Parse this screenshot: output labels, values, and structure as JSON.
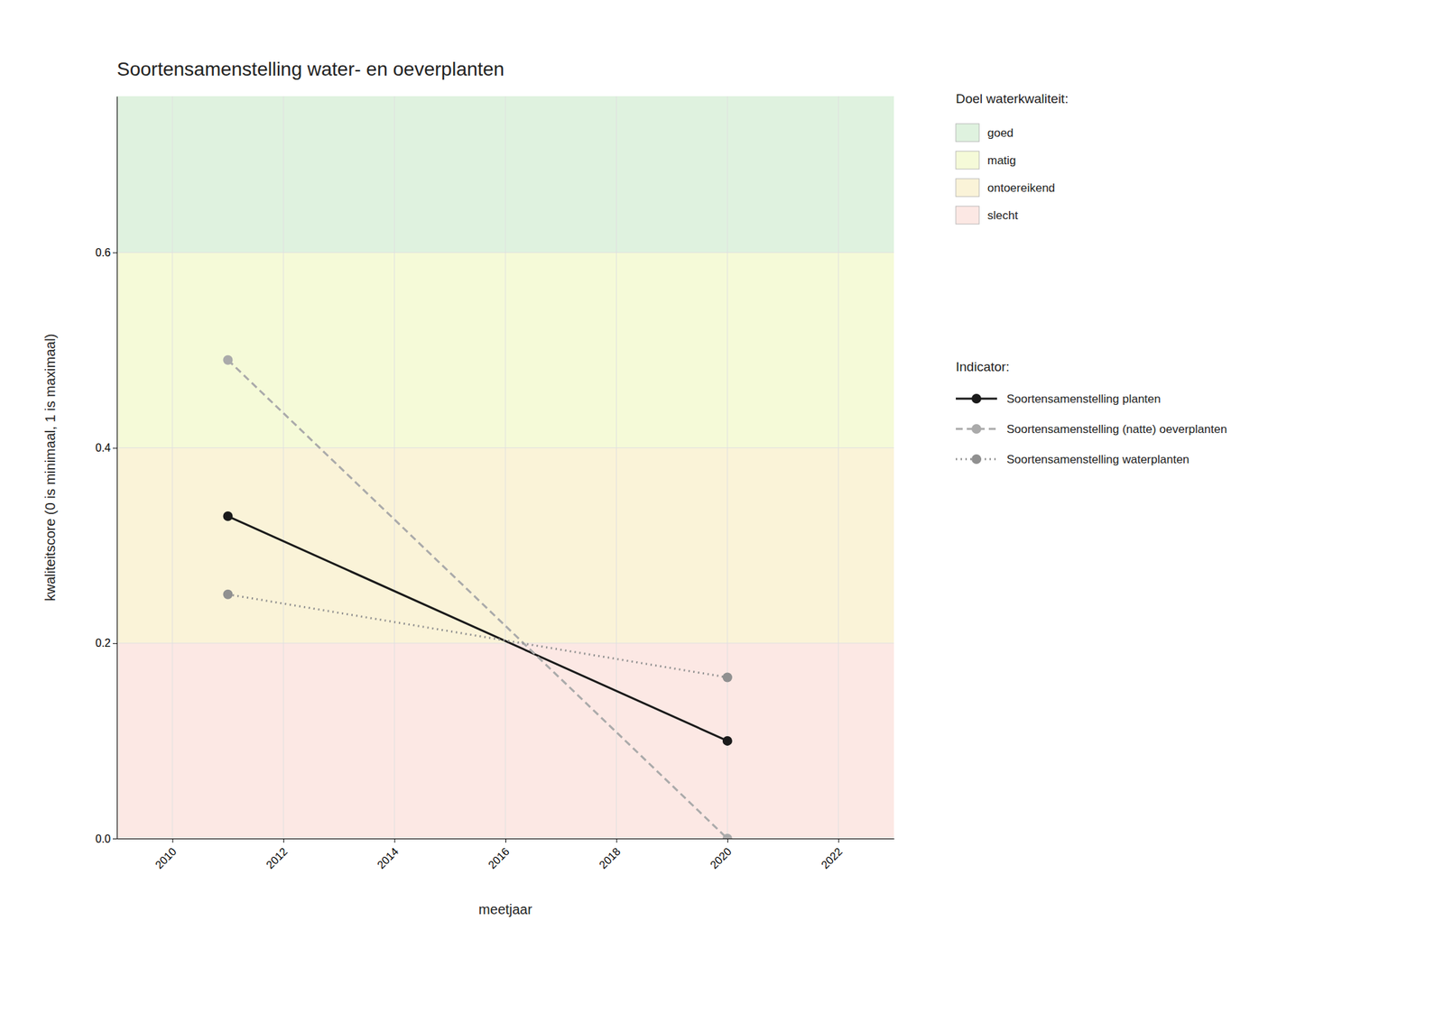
{
  "chart_data": {
    "type": "line",
    "title": "Soortensamenstelling water- en oeverplanten",
    "x_label": "meetjaar",
    "y_label": "kwaliteitscore (0 is minimaal, 1 is maximaal)",
    "xlim": [
      2009.0,
      2023.0
    ],
    "ylim": [
      0.0,
      0.76
    ],
    "xticks": [
      2010,
      2012,
      2014,
      2016,
      2018,
      2020,
      2022
    ],
    "yticks": [
      {
        "value": 0.0,
        "label": "0.0"
      },
      0.2,
      0.4,
      0.6
    ],
    "grid": true,
    "bands_title": "Doel waterkwaliteit:",
    "bands": [
      {
        "name": "goed",
        "from": 0.6,
        "to": 0.76,
        "color": "#dff2df"
      },
      {
        "name": "matig",
        "from": 0.4,
        "to": 0.6,
        "color": "#f5fad8"
      },
      {
        "name": "ontoereikend",
        "from": 0.2,
        "to": 0.4,
        "color": "#faf3d8"
      },
      {
        "name": "slecht",
        "from": 0.0,
        "to": 0.2,
        "color": "#fce8e4"
      }
    ],
    "legend_title": "Indicator:",
    "x": [
      2011,
      2020
    ],
    "series": [
      {
        "name": "Soortensamenstelling planten",
        "color": "#1a1a1a",
        "line_style": "solid",
        "marker": "circle",
        "values": [
          0.33,
          0.1
        ]
      },
      {
        "name": "Soortensamenstelling (natte) oeverplanten",
        "color": "#aaaaaa",
        "line_style": "dashed",
        "marker": "circle",
        "values": [
          0.49,
          0.0
        ]
      },
      {
        "name": "Soortensamenstelling waterplanten",
        "color": "#909090",
        "line_style": "dotted",
        "marker": "circle",
        "values": [
          0.25,
          0.165
        ]
      }
    ]
  }
}
